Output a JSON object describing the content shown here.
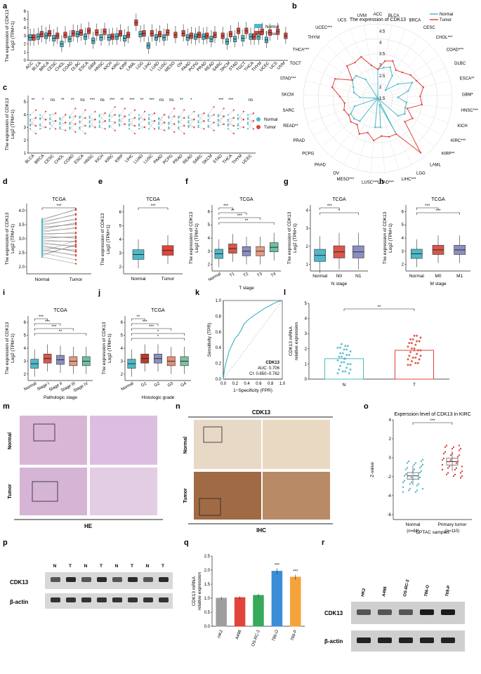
{
  "panel_labels": [
    "a",
    "b",
    "c",
    "d",
    "e",
    "f",
    "g",
    "h",
    "i",
    "j",
    "k",
    "l",
    "m",
    "n",
    "o",
    "p",
    "q",
    "r"
  ],
  "colors": {
    "normal": "#4fb8c8",
    "tumor": "#e0443a",
    "t1": "#d9574a",
    "t2": "#8b8fbf",
    "t3": "#e39a83",
    "t4": "#6cc0a4",
    "g1": "#c0392b",
    "g2": "#8e8fc0",
    "g3": "#e58d73",
    "g4": "#7dc1a0",
    "bar_hk2": "#9e9e9e",
    "bar_a498": "#e0443a",
    "bar_osrc2": "#37a95a",
    "bar_786o": "#3c8dd8",
    "bar_769p": "#f5a33a",
    "he": "#d9b6d6",
    "ihc_normal": "#e7d9c6",
    "ihc_tumor": "#8b5a3a"
  },
  "legend": {
    "normal": "Normal",
    "tumor": "Tumor"
  },
  "stars": [
    "***",
    "**",
    "*",
    "ns"
  ],
  "chart_data": [
    {
      "id": "a",
      "type": "box",
      "ylabel": "The expression of CDK13",
      "ylabel2": "Log2 (TPM+1)",
      "yticks": [
        "0",
        "1",
        "2",
        "3",
        "4",
        "5",
        "6"
      ],
      "categories": [
        "ACC",
        "BLCA",
        "BRCA",
        "CESC",
        "CHOL",
        "COAD",
        "DLBC",
        "ESCA",
        "GBM",
        "HNSC",
        "KICH",
        "KIRC",
        "KIRP",
        "LAML",
        "LGG",
        "LIHC",
        "LUAD",
        "LUSC",
        "MESO",
        "OV",
        "PAAD",
        "PCPG",
        "PRAD",
        "READ",
        "SARC",
        "SKCM",
        "STAD",
        "TGCT",
        "THCA",
        "THYM",
        "UCEC",
        "UCS",
        "UVM"
      ],
      "normal_median": [
        2.8,
        2.9,
        3.0,
        2.7,
        2.0,
        2.6,
        3.2,
        2.9,
        2.4,
        2.8,
        2.8,
        2.9,
        2.7,
        0,
        3.2,
        1.8,
        2.8,
        2.8,
        0,
        0,
        2.8,
        2.9,
        2.9,
        2.6,
        0,
        2.3,
        2.6,
        2.7,
        2.9,
        2.9,
        2.5,
        0,
        0
      ],
      "tumor_median": [
        2.8,
        3.2,
        3.3,
        3.0,
        3.1,
        3.3,
        3.4,
        3.6,
        3.4,
        3.5,
        2.9,
        3.3,
        3.1,
        4.6,
        3.3,
        3.3,
        3.2,
        3.4,
        3.1,
        3.3,
        3.0,
        3.1,
        3.0,
        3.1,
        3.0,
        3.2,
        3.6,
        3.6,
        2.9,
        3.5,
        3.4,
        3.5,
        3.0
      ]
    },
    {
      "id": "b",
      "type": "radar",
      "title": "The expression of CDK13",
      "ticks": [
        "1.5",
        "2",
        "2.5",
        "3",
        "3.5",
        "4",
        "4.5"
      ],
      "categories": [
        "ACC",
        "BLCA",
        "BRCA",
        "CESC",
        "CHOL***",
        "COAD***",
        "DLBC",
        "ESCA**",
        "GBM*",
        "HNSC***",
        "KICH",
        "KIRC***",
        "KIRP**",
        "LAML",
        "LGG",
        "LIHC***",
        "LUAD***",
        "LUSC***",
        "MESO***",
        "OV",
        "PAAD",
        "PCPG",
        "PRAD",
        "READ**",
        "SARC",
        "SKCM",
        "STAD***",
        "TGCT",
        "THCA***",
        "THYM",
        "UCEC***",
        "UCS",
        "UVM"
      ],
      "normal": [
        2.8,
        2.9,
        3.0,
        2.7,
        2.0,
        2.6,
        3.2,
        2.9,
        2.4,
        2.8,
        2.8,
        2.9,
        2.7,
        1.5,
        3.2,
        1.8,
        2.8,
        2.8,
        1.5,
        1.5,
        2.8,
        2.9,
        2.9,
        2.6,
        1.5,
        2.3,
        2.6,
        2.7,
        2.9,
        2.9,
        2.5,
        1.5,
        1.5
      ],
      "tumor": [
        2.8,
        3.2,
        3.3,
        3.0,
        3.1,
        3.3,
        3.4,
        3.6,
        3.4,
        3.5,
        2.9,
        3.3,
        3.1,
        4.6,
        3.3,
        3.3,
        3.2,
        3.4,
        3.1,
        3.3,
        3.0,
        3.1,
        3.0,
        3.1,
        3.0,
        3.2,
        3.6,
        3.6,
        2.9,
        3.5,
        3.4,
        3.5,
        3.0
      ]
    },
    {
      "id": "c",
      "type": "paired",
      "ylabel": "The expression of CDK13",
      "ylabel2": "Log2 (TPM+1)",
      "yticks": [
        "1",
        "2",
        "3",
        "4",
        "5"
      ],
      "categories": [
        "BLCA",
        "BRCA",
        "CESC",
        "CHOL",
        "COAD",
        "ESCA",
        "HNSC",
        "KICH",
        "KIRC",
        "KIRP",
        "LIHC",
        "LUAD",
        "LUSC",
        "PAAD",
        "PCPG",
        "PRAD",
        "READ",
        "SARC",
        "SKCM",
        "STAD",
        "THCA",
        "THYM",
        "UCEC"
      ],
      "sig": [
        "**",
        "*",
        "ns",
        "**",
        "**",
        "ns",
        "***",
        "ns",
        "***",
        "**",
        "***",
        "**",
        "***",
        "ns",
        "ns",
        "**",
        "*",
        "",
        "",
        "***",
        "***",
        "",
        "ns"
      ]
    },
    {
      "id": "d",
      "type": "paired",
      "title": "TCGA",
      "ylabel": "The expression of CDK13",
      "ylabel2": "Log2 (TPM+1)",
      "categories": [
        "Normal",
        "Tumor"
      ],
      "yticks": [
        "2.0",
        "2.5",
        "3.0",
        "3.5",
        "4.0"
      ],
      "sig": "***"
    },
    {
      "id": "e",
      "type": "box",
      "title": "TCGA",
      "ylabel": "The expression of CDK13",
      "ylabel2": "Log2 (TPM+1)",
      "categories": [
        "Normal",
        "Tumor"
      ],
      "yticks": [
        "2",
        "3",
        "4",
        "5",
        "6"
      ],
      "median": [
        2.9,
        3.2
      ],
      "sig": "***"
    },
    {
      "id": "f",
      "type": "box",
      "title": "TCGA",
      "ylabel": "The expression of CDK13",
      "ylabel2": "Log2 (TPM+1)",
      "xlabel": "T stage",
      "categories": [
        "Normal",
        "T1",
        "T2",
        "T3",
        "T4"
      ],
      "yticks": [
        "2",
        "3",
        "4",
        "5",
        "6"
      ],
      "median": [
        2.8,
        3.2,
        3.0,
        3.0,
        3.3
      ],
      "sig": [
        "***",
        "**",
        "***",
        "**"
      ]
    },
    {
      "id": "g",
      "type": "box",
      "title": "TCGA",
      "ylabel": "The expression of CDK13",
      "ylabel2": "Log2 (TPM+1)",
      "xlabel": "N stage",
      "categories": [
        "Normal",
        "N0",
        "N1"
      ],
      "yticks": [
        "1",
        "2",
        "3",
        "4"
      ],
      "median": [
        1.6,
        1.8,
        1.8
      ],
      "sig": [
        "***",
        "*"
      ]
    },
    {
      "id": "h",
      "type": "box",
      "title": "TCGA",
      "ylabel": "The expression of CDK13",
      "ylabel2": "Log2 (TPM+1)",
      "xlabel": "M stage",
      "categories": [
        "Normal",
        "M0",
        "M1"
      ],
      "yticks": [
        "2",
        "3",
        "4",
        "5",
        "6"
      ],
      "median": [
        2.8,
        3.1,
        3.1
      ],
      "sig": [
        "***",
        "***"
      ]
    },
    {
      "id": "i",
      "type": "box",
      "title": "TCGA",
      "ylabel": "The expression of CDK13",
      "ylabel2": "Log2 (TPM+1)",
      "xlabel": "Pathologic stage",
      "categories": [
        "Normal",
        "Stage I",
        "Stage II",
        "Stage III",
        "Stage IV"
      ],
      "yticks": [
        "2",
        "3",
        "4",
        "5",
        "6"
      ],
      "median": [
        2.8,
        3.2,
        3.1,
        3.0,
        3.0
      ],
      "sig": [
        "***",
        "***",
        "***",
        "**"
      ]
    },
    {
      "id": "j",
      "type": "box",
      "title": "TCGA",
      "ylabel": "The expression of CDK13",
      "ylabel2": "Log2 (TPM+1)",
      "xlabel": "Histologic grade",
      "categories": [
        "Normal",
        "G1",
        "G2",
        "G3",
        "G4"
      ],
      "yticks": [
        "2",
        "3",
        "4",
        "5",
        "6"
      ],
      "median": [
        2.8,
        3.2,
        3.2,
        3.0,
        3.0
      ],
      "sig": [
        "**",
        "***",
        "***",
        "*",
        "*"
      ]
    },
    {
      "id": "k",
      "type": "roc",
      "xlabel": "1−Specificity (FPR)",
      "ylabel": "Sensitivity (TPR)",
      "label": "CDK13",
      "auc": "AUC: 0.706",
      "ci": "CI: 0.650−0.762",
      "ticks": [
        "0.0",
        "0.2",
        "0.4",
        "0.6",
        "0.8",
        "1.0"
      ],
      "fpr": [
        0,
        0.02,
        0.05,
        0.08,
        0.1,
        0.15,
        0.2,
        0.25,
        0.3,
        0.35,
        0.4,
        0.5,
        0.6,
        0.7,
        0.8,
        0.9,
        1.0
      ],
      "tpr": [
        0,
        0.12,
        0.22,
        0.3,
        0.36,
        0.44,
        0.52,
        0.56,
        0.62,
        0.7,
        0.74,
        0.8,
        0.85,
        0.9,
        0.94,
        0.98,
        1.0
      ]
    },
    {
      "id": "l",
      "type": "bar",
      "ylabel": "CDK13 mRNA",
      "ylabel2": "relative expression",
      "categories": [
        "N",
        "T"
      ],
      "values": [
        1.35,
        1.9
      ],
      "yticks": [
        "0",
        "1",
        "2",
        "3",
        "4",
        "5"
      ],
      "sig": "**"
    },
    {
      "id": "o",
      "type": "box",
      "title": "Experssion level of CDK13 in KIRC",
      "ylabel": "Z-value",
      "xlabel": "CPTAC samples",
      "categories": [
        "Normal",
        "Primary tumor"
      ],
      "counts": [
        "(n=84)",
        "(n=110)"
      ],
      "yticks": [
        "-6",
        "-4",
        "-2",
        "0",
        "2",
        "4"
      ],
      "median": [
        -1.4,
        0.1
      ],
      "sig": "***"
    },
    {
      "id": "q",
      "type": "bar",
      "ylabel": "CDK13 mRNA",
      "ylabel2": "relative expression",
      "categories": [
        "HK2",
        "A498",
        "OS-RC-2",
        "786-O",
        "769-P"
      ],
      "values": [
        1.0,
        1.02,
        1.1,
        1.96,
        1.75
      ],
      "yticks": [
        "0.0",
        "0.5",
        "1.0",
        "1.5",
        "2.0",
        "2.5"
      ],
      "sig": [
        "",
        "",
        "",
        "***",
        "***"
      ]
    }
  ],
  "panel_m": {
    "rows": [
      "Normal",
      "Tumor"
    ],
    "caption": "HE"
  },
  "panel_n": {
    "title": "CDK13",
    "rows": [
      "Normal",
      "Tumor"
    ],
    "caption": "IHC"
  },
  "panel_p": {
    "lanes": [
      "N",
      "T",
      "N",
      "T",
      "N",
      "T",
      "N",
      "T"
    ],
    "rows": [
      "CDK13",
      "β-actin"
    ]
  },
  "panel_r": {
    "lanes": [
      "HK2",
      "A498",
      "OS-RC-2",
      "786-O",
      "769-P"
    ],
    "rows": [
      "CDK13",
      "β-actin"
    ]
  }
}
